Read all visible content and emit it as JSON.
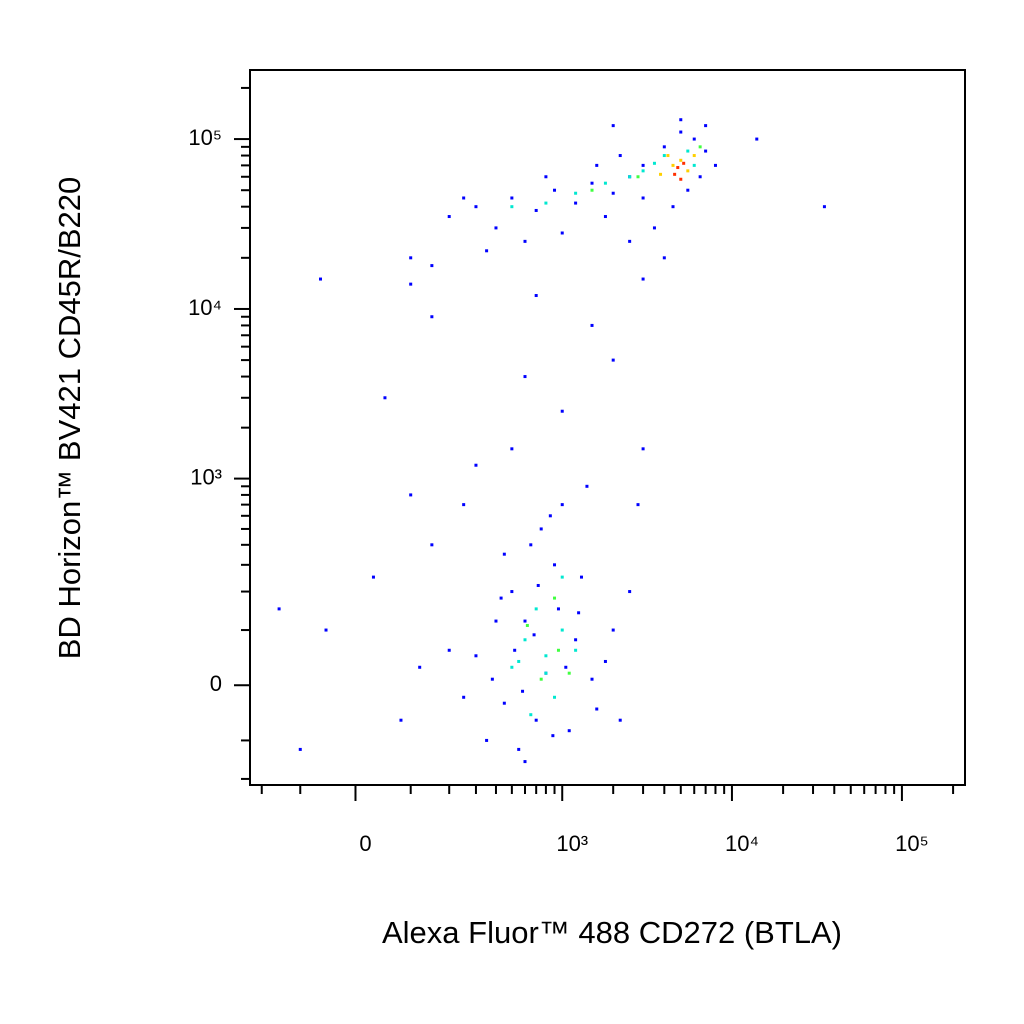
{
  "chart_data": {
    "type": "scatter",
    "x_label": "Alexa Fluor™ 488 CD272 (BTLA)",
    "y_label": "BD Horizon™ BV421 CD45R/B220",
    "scale": "biexponential",
    "xlim": [
      -240,
      235000
    ],
    "ylim": [
      -220,
      255000
    ],
    "xticks": [
      0,
      {
        "value": 1000,
        "label": "10³"
      },
      {
        "value": 10000,
        "label": "10⁴"
      },
      {
        "value": 100000,
        "label": "10⁵"
      }
    ],
    "yticks": [
      0,
      {
        "value": 1000,
        "label": "10³"
      },
      {
        "value": 10000,
        "label": "10⁴"
      },
      {
        "value": 100000,
        "label": "10⁵"
      }
    ],
    "xminorticks": [
      -200,
      -100,
      100,
      200,
      300,
      400,
      500,
      600,
      700,
      800,
      900,
      2000,
      3000,
      4000,
      5000,
      6000,
      7000,
      8000,
      9000,
      20000,
      30000,
      40000,
      50000,
      60000,
      70000,
      80000,
      90000,
      200000
    ],
    "yminorticks": [
      -200,
      -100,
      100,
      200,
      300,
      400,
      500,
      600,
      700,
      800,
      900,
      2000,
      3000,
      4000,
      5000,
      6000,
      7000,
      8000,
      9000,
      20000,
      30000,
      40000,
      50000,
      60000,
      70000,
      80000,
      90000,
      200000
    ],
    "series": [
      {
        "color": "#0000ff",
        "x": [
          300,
          450,
          600,
          800,
          1200,
          900,
          700,
          500,
          1500,
          1100,
          350,
          650,
          850,
          1300,
          1800,
          400,
          250,
          550,
          950,
          750,
          1600,
          2000,
          1000,
          450,
          1400,
          600,
          200,
          120,
          80,
          -50,
          -100,
          -150,
          30,
          150,
          100,
          300,
          500,
          250,
          2500,
          2200,
          3000,
          1000,
          600,
          2000,
          1500,
          150,
          100,
          -60,
          50,
          700,
          2800,
          380,
          520,
          680,
          880,
          1050,
          1250,
          720,
          430,
          580,
          200,
          35000,
          300,
          400,
          500,
          700,
          900,
          1200,
          1500,
          2000,
          2500,
          3000,
          4000,
          5000,
          6000,
          7000,
          6500,
          4500,
          3500,
          2500,
          1800,
          1000,
          600,
          350,
          250,
          800,
          1600,
          3000,
          5500,
          8000,
          4000,
          3000,
          150,
          100,
          14000,
          2000,
          2200,
          7000,
          5000
        ],
        "values": [
          50,
          -30,
          120,
          20,
          80,
          300,
          -60,
          200,
          10,
          -80,
          -100,
          400,
          600,
          250,
          40,
          120,
          -20,
          -120,
          150,
          500,
          -40,
          100,
          700,
          350,
          900,
          -150,
          60,
          30,
          -60,
          100,
          -120,
          150,
          250,
          400,
          800,
          1200,
          1500,
          700,
          200,
          -60,
          1500,
          2500,
          4000,
          5000,
          8000,
          9000,
          20000,
          15000,
          3000,
          12000,
          700,
          10,
          60,
          90,
          -90,
          30,
          140,
          220,
          180,
          -10,
          35000,
          40000,
          40000,
          30000,
          45000,
          38000,
          50000,
          42000,
          55000,
          48000,
          60000,
          70000,
          90000,
          110000,
          100000,
          85000,
          60000,
          40000,
          30000,
          25000,
          35000,
          28000,
          25000,
          22000,
          45000,
          60000,
          70000,
          45000,
          50000,
          70000,
          20000,
          15000,
          18000,
          14000,
          100000,
          120000,
          80000,
          120000,
          130000
        ]
      },
      {
        "color": "#00e8d0",
        "x": [
          800,
          600,
          900,
          1000,
          700,
          500,
          1200,
          650,
          1000,
          800,
          550,
          500,
          800,
          1200,
          1800,
          2500,
          3500,
          4000,
          5500,
          6000,
          3000
        ],
        "values": [
          50,
          80,
          -20,
          100,
          150,
          30,
          60,
          -50,
          250,
          20,
          40,
          40000,
          42000,
          48000,
          55000,
          60000,
          72000,
          80000,
          85000,
          70000,
          65000
        ]
      },
      {
        "color": "#40ff40",
        "x": [
          750,
          950,
          620,
          1100,
          900,
          1500,
          2800,
          6500
        ],
        "values": [
          10,
          60,
          110,
          20,
          180,
          50000,
          60000,
          90000
        ]
      },
      {
        "color": "#ffd000",
        "x": [
          4500,
          5000,
          5500,
          4200,
          6000,
          3800
        ],
        "values": [
          70000,
          75000,
          65000,
          80000,
          80000,
          62000
        ]
      },
      {
        "color": "#ff3000",
        "x": [
          4800,
          5200,
          4600,
          5000
        ],
        "values": [
          68000,
          72000,
          62000,
          58000
        ]
      }
    ]
  }
}
